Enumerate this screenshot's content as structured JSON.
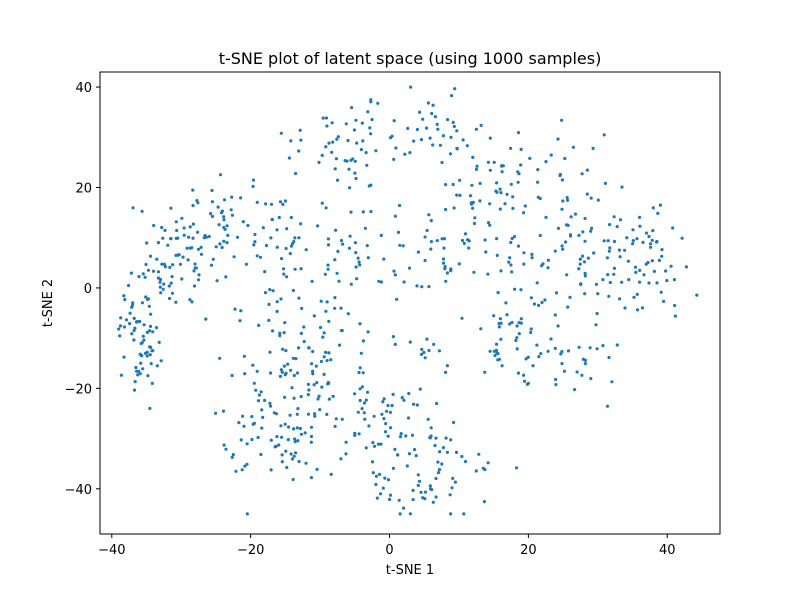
{
  "chart_data": {
    "type": "scatter",
    "title": "t-SNE plot of latent space (using 1000 samples)",
    "xlabel": "t-SNE 1",
    "ylabel": "t-SNE 2",
    "xlim": [
      -41.7,
      47.6
    ],
    "ylim": [
      -49.0,
      43.0
    ],
    "xticks": [
      -40,
      -20,
      0,
      20,
      40
    ],
    "yticks": [
      -40,
      -20,
      0,
      20,
      40
    ],
    "xtick_labels": [
      "−40",
      "−20",
      "0",
      "20",
      "40"
    ],
    "ytick_labels": [
      "−40",
      "−20",
      "0",
      "20",
      "40"
    ],
    "grid": false,
    "legend": "none",
    "point_color": "#1f77b4",
    "clusters": [
      {
        "cx": -36.0,
        "cy": -9.0,
        "sx": 1.5,
        "sy": 6.0,
        "n": 70
      },
      {
        "cx": -31.5,
        "cy": 6.0,
        "sx": 3.5,
        "sy": 5.0,
        "n": 80
      },
      {
        "cx": -25.0,
        "cy": 13.0,
        "sx": 2.0,
        "sy": 3.5,
        "n": 30
      },
      {
        "cx": -17.0,
        "cy": 12.0,
        "sx": 3.5,
        "sy": 5.0,
        "n": 35
      },
      {
        "cx": -7.5,
        "cy": 7.0,
        "sx": 5.0,
        "sy": 5.0,
        "n": 45
      },
      {
        "cx": -5.0,
        "cy": 29.0,
        "sx": 4.0,
        "sy": 5.0,
        "n": 55
      },
      {
        "cx": 5.0,
        "cy": 32.0,
        "sx": 3.0,
        "sy": 4.0,
        "n": 20
      },
      {
        "cx": -13.0,
        "cy": -13.0,
        "sx": 5.5,
        "sy": 8.0,
        "n": 130
      },
      {
        "cx": -14.0,
        "cy": -30.0,
        "sx": 5.5,
        "sy": 5.0,
        "n": 70
      },
      {
        "cx": 1.0,
        "cy": -30.0,
        "sx": 4.5,
        "sy": 7.0,
        "n": 70
      },
      {
        "cx": 5.0,
        "cy": -40.0,
        "sx": 3.5,
        "sy": 3.0,
        "n": 30
      },
      {
        "cx": 12.0,
        "cy": 22.0,
        "sx": 4.0,
        "sy": 8.0,
        "n": 60
      },
      {
        "cx": 7.0,
        "cy": 6.0,
        "sx": 5.0,
        "sy": 4.0,
        "n": 40
      },
      {
        "cx": 24.0,
        "cy": 19.0,
        "sx": 5.0,
        "sy": 7.0,
        "n": 60
      },
      {
        "cx": 29.0,
        "cy": 5.0,
        "sx": 5.0,
        "sy": 5.0,
        "n": 55
      },
      {
        "cx": 38.0,
        "cy": 4.0,
        "sx": 3.5,
        "sy": 5.0,
        "n": 45
      },
      {
        "cx": 19.0,
        "cy": -9.0,
        "sx": 5.0,
        "sy": 5.0,
        "n": 55
      },
      {
        "cx": 26.0,
        "cy": -14.0,
        "sx": 3.5,
        "sy": 4.0,
        "n": 30
      },
      {
        "cx": 10.0,
        "cy": -33.0,
        "sx": 3.0,
        "sy": 3.0,
        "n": 10
      },
      {
        "cx": 6.0,
        "cy": -12.0,
        "sx": 2.0,
        "sy": 3.0,
        "n": 10
      }
    ]
  }
}
